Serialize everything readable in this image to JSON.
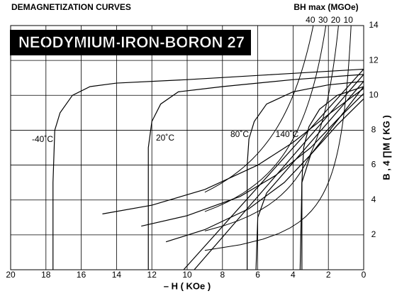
{
  "chart_data": {
    "type": "line",
    "title": "DEMAGNETIZATION CURVES",
    "subtitle": "NEODYMIUM-IRON-BORON 27",
    "x_label": "– H ( KOe )",
    "y_label": "B , 4 ∏M ( KG )",
    "xlim": [
      20,
      0
    ],
    "xticks": [
      20,
      18,
      16,
      14,
      12,
      10,
      8,
      6,
      4,
      2,
      0
    ],
    "ylim": [
      0,
      14
    ],
    "yticks": [
      2,
      4,
      6,
      8,
      10,
      12,
      14
    ],
    "grid": true,
    "color": "#000000",
    "series": [
      {
        "name": "-40˚C",
        "x": [
          0,
          5,
          10,
          14,
          15.5,
          16.5,
          17.2,
          17.5,
          17.6,
          17.6
        ],
        "values": [
          11.5,
          11.2,
          10.9,
          10.7,
          10.5,
          10,
          9,
          8,
          5,
          0
        ]
      },
      {
        "name": "20˚C",
        "x": [
          0,
          4,
          8,
          10.5,
          11.5,
          12,
          12.2,
          12.2
        ],
        "values": [
          11.2,
          10.9,
          10.5,
          10.2,
          9.5,
          8.5,
          7,
          0
        ]
      },
      {
        "name": "80˚C",
        "x": [
          0,
          2,
          4,
          5.5,
          6.2,
          6.5,
          6.6,
          6.6
        ],
        "values": [
          10.8,
          10.6,
          10.2,
          9.5,
          8.5,
          7.5,
          6,
          0
        ]
      },
      {
        "name": "140˚C",
        "x": [
          0,
          1.5,
          2.5,
          3.1,
          3.4,
          3.5,
          3.5
        ],
        "values": [
          10.5,
          10,
          9.2,
          8.2,
          7,
          5,
          0
        ]
      },
      {
        "x": [
          0,
          10.2
        ],
        "values": [
          11.5,
          0
        ]
      },
      {
        "x": [
          0,
          9.6
        ],
        "values": [
          11.2,
          0
        ]
      },
      {
        "x": [
          0,
          5.5,
          6,
          6.1
        ],
        "values": [
          10.8,
          4.4,
          3,
          0
        ]
      },
      {
        "x": [
          0,
          3,
          3.5,
          3.6
        ],
        "values": [
          10.5,
          6.6,
          5,
          0
        ]
      },
      {
        "x": [
          14.8,
          12,
          9,
          6,
          4,
          2,
          0
        ],
        "values": [
          3.2,
          3.7,
          4.6,
          6,
          7.3,
          8.9,
          10.4
        ]
      },
      {
        "x": [
          12.6,
          10,
          7,
          5,
          3,
          1.5,
          0
        ],
        "values": [
          2.5,
          3.1,
          4.2,
          5.4,
          7,
          8.6,
          10.1
        ]
      },
      {
        "x": [
          11.2,
          9,
          6.5,
          4.5,
          3,
          1.5,
          0
        ],
        "values": [
          1.6,
          2.3,
          3.5,
          5,
          6.6,
          8.3,
          9.8
        ]
      }
    ],
    "bh_max": {
      "label": "BH max (MGOe)",
      "values": [
        40,
        30,
        20,
        10
      ]
    }
  }
}
